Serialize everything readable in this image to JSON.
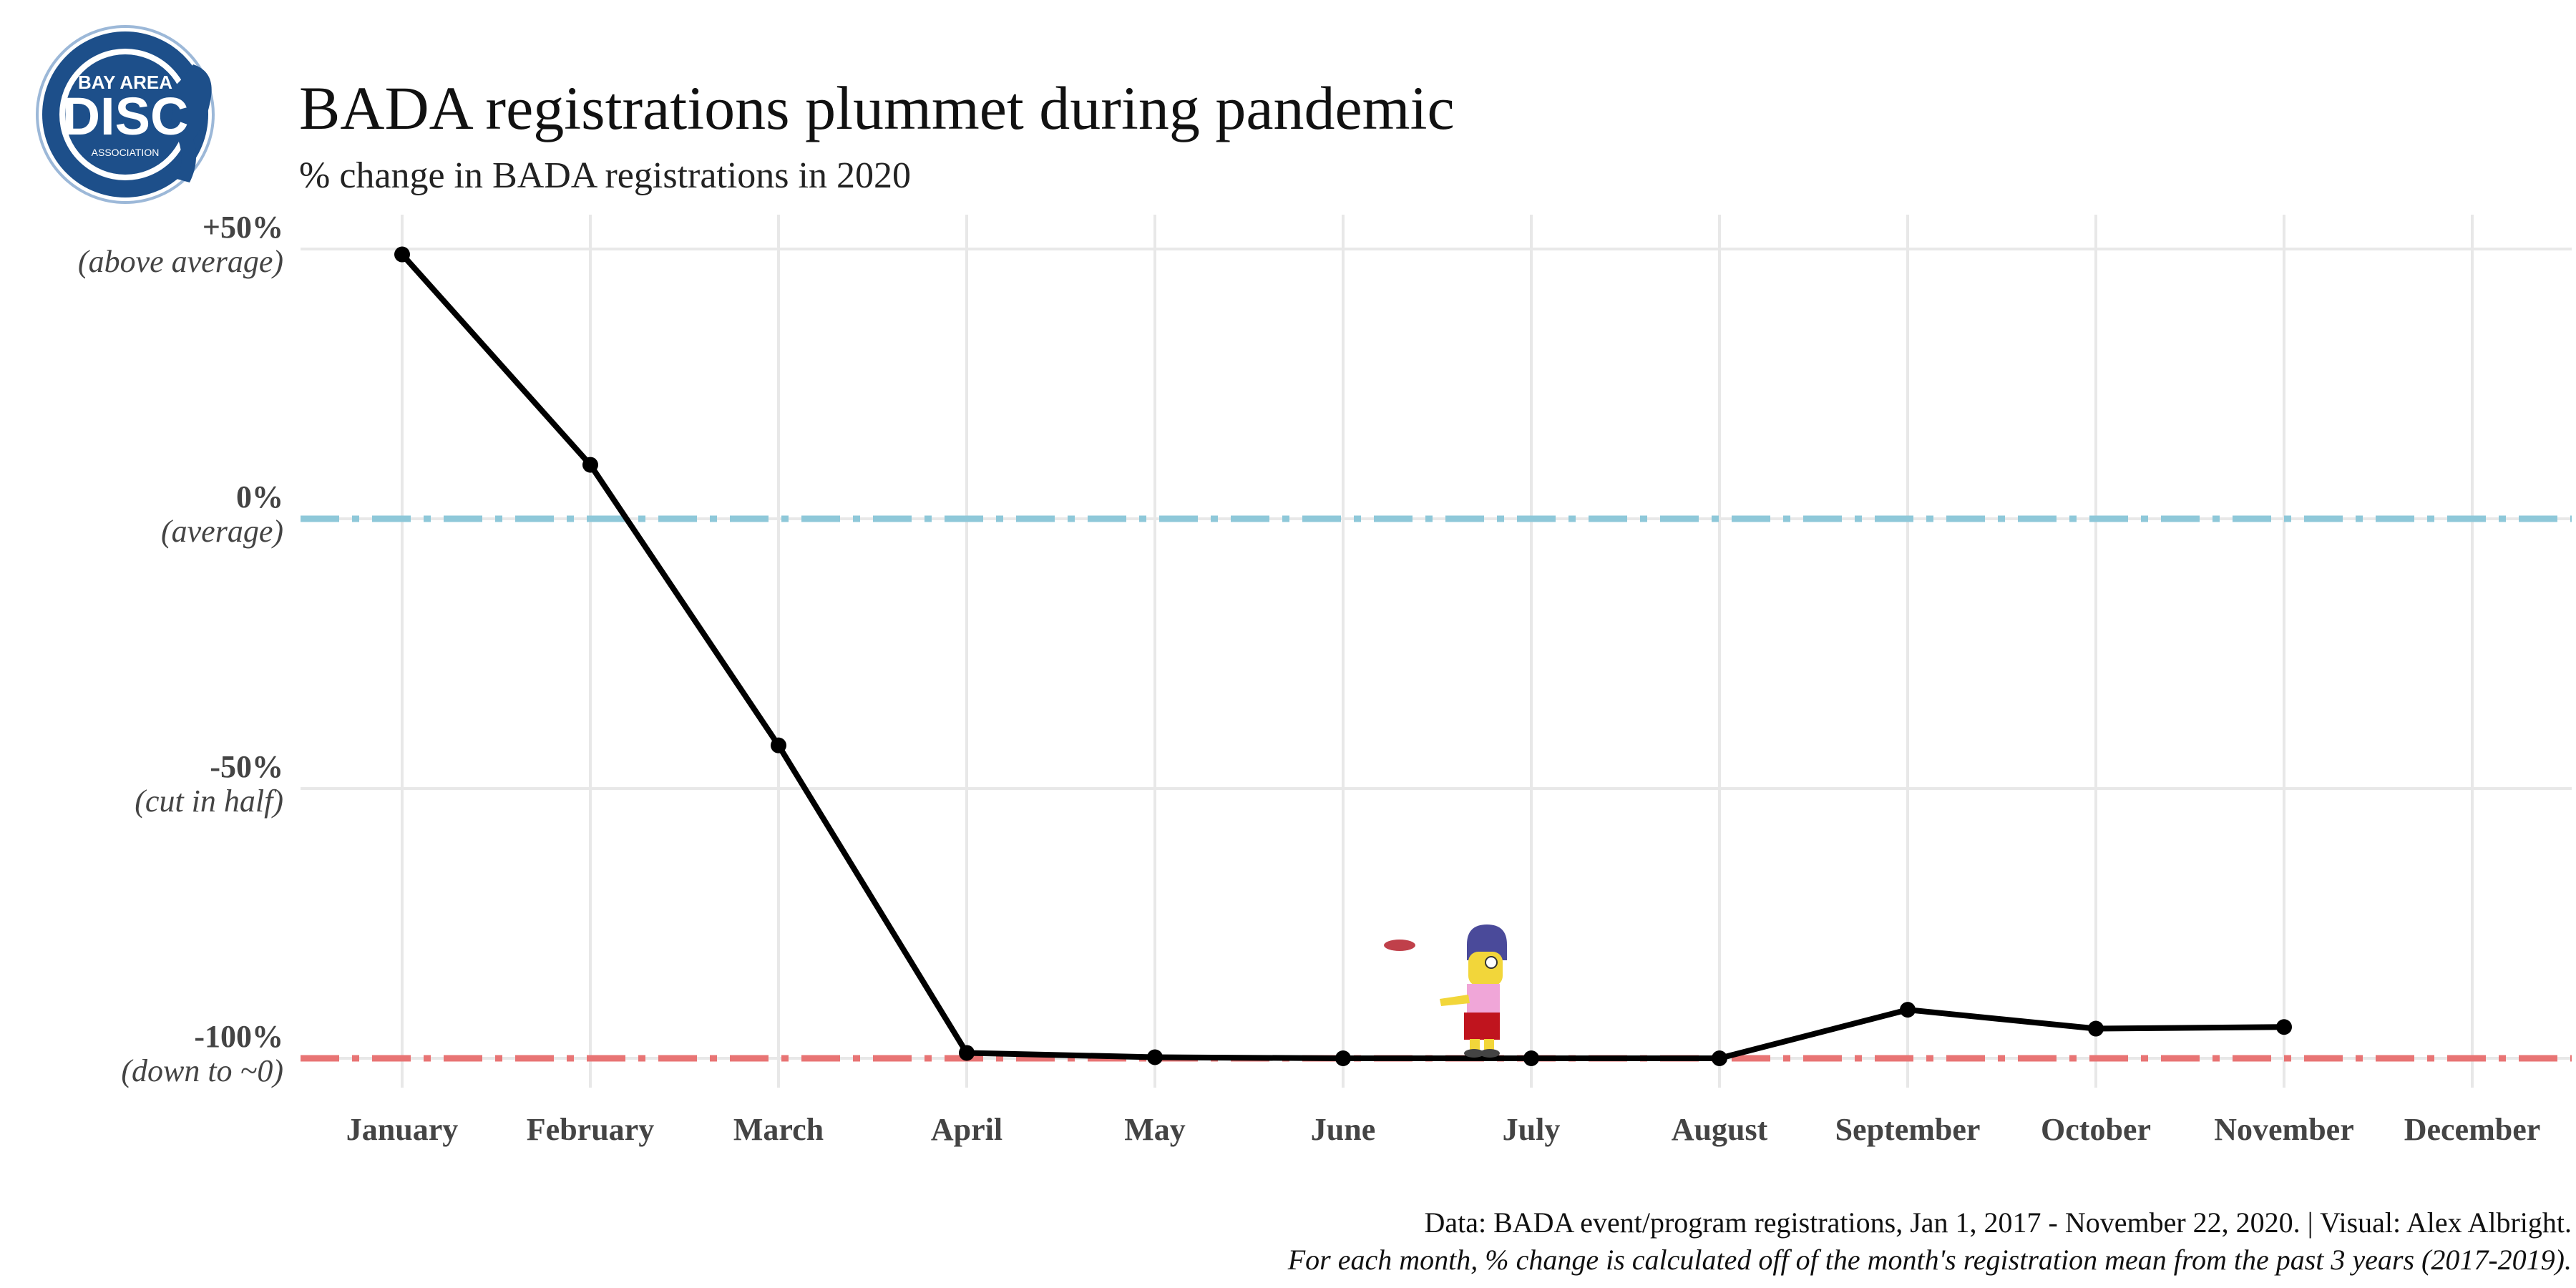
{
  "logo": {
    "line1": "BAY AREA",
    "line2": "DISC",
    "line3": "ASSOCIATION",
    "colors": {
      "outer": "#1d4f8a",
      "inner": "#ffffff",
      "core": "#1d4f8a"
    }
  },
  "chart_data": {
    "type": "line",
    "title": "BADA registrations plummet during pandemic",
    "subtitle": "% change in BADA registrations in 2020",
    "xlabel": "",
    "ylabel": "",
    "categories": [
      "January",
      "February",
      "March",
      "April",
      "May",
      "June",
      "July",
      "August",
      "September",
      "October",
      "November",
      "December"
    ],
    "series": [
      {
        "values": [
          49,
          10,
          -42,
          -99,
          -99.8,
          -100,
          -100,
          -100,
          -91,
          -94.5,
          -94.2,
          null
        ],
        "color": "#000000"
      }
    ],
    "ylim": [
      -106,
      57
    ],
    "yticks": [
      {
        "value": 50,
        "label": "+50%",
        "sublabel": "(above average)"
      },
      {
        "value": 0,
        "label": "0%",
        "sublabel": "(average)"
      },
      {
        "value": -50,
        "label": "-50%",
        "sublabel": "(cut in half)"
      },
      {
        "value": -100,
        "label": "-100%",
        "sublabel": "(down to ~0)"
      }
    ],
    "reference_lines": [
      {
        "value": 0,
        "color": "#8ec8d9",
        "style": "dash-dot"
      },
      {
        "value": -100,
        "color": "#e87474",
        "style": "dash-dot"
      }
    ],
    "grid": true,
    "grid_color": "#e8e8e8",
    "legend": "none",
    "annotation_icon": "character-throwing-disc-icon",
    "annotation_month": "June",
    "caption_line1": "Data: BADA event/program registrations, Jan 1, 2017 - November 22, 2020. | Visual: Alex Albright.",
    "caption_line2": "For each month, % change is calculated off of the month's registration mean from the past 3 years (2017-2019)."
  }
}
